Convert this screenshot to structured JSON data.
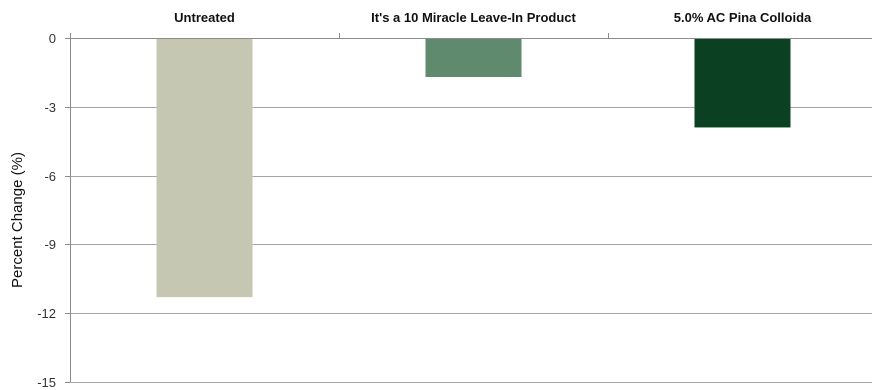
{
  "chart_data": {
    "type": "bar",
    "categories": [
      "Untreated",
      "It's a 10 Miracle Leave-In Product",
      "5.0% AC Pina Colloida"
    ],
    "values": [
      -11.3,
      -1.7,
      -3.9
    ],
    "colors": [
      "#c5c7b2",
      "#5f8a6e",
      "#0b4023"
    ],
    "ylabel": "Percent Change (%)",
    "ylim": [
      -15,
      0
    ],
    "yticks": [
      0,
      -3,
      -6,
      -9,
      -12,
      -15
    ],
    "xaxis_position": "top",
    "grid": true
  }
}
